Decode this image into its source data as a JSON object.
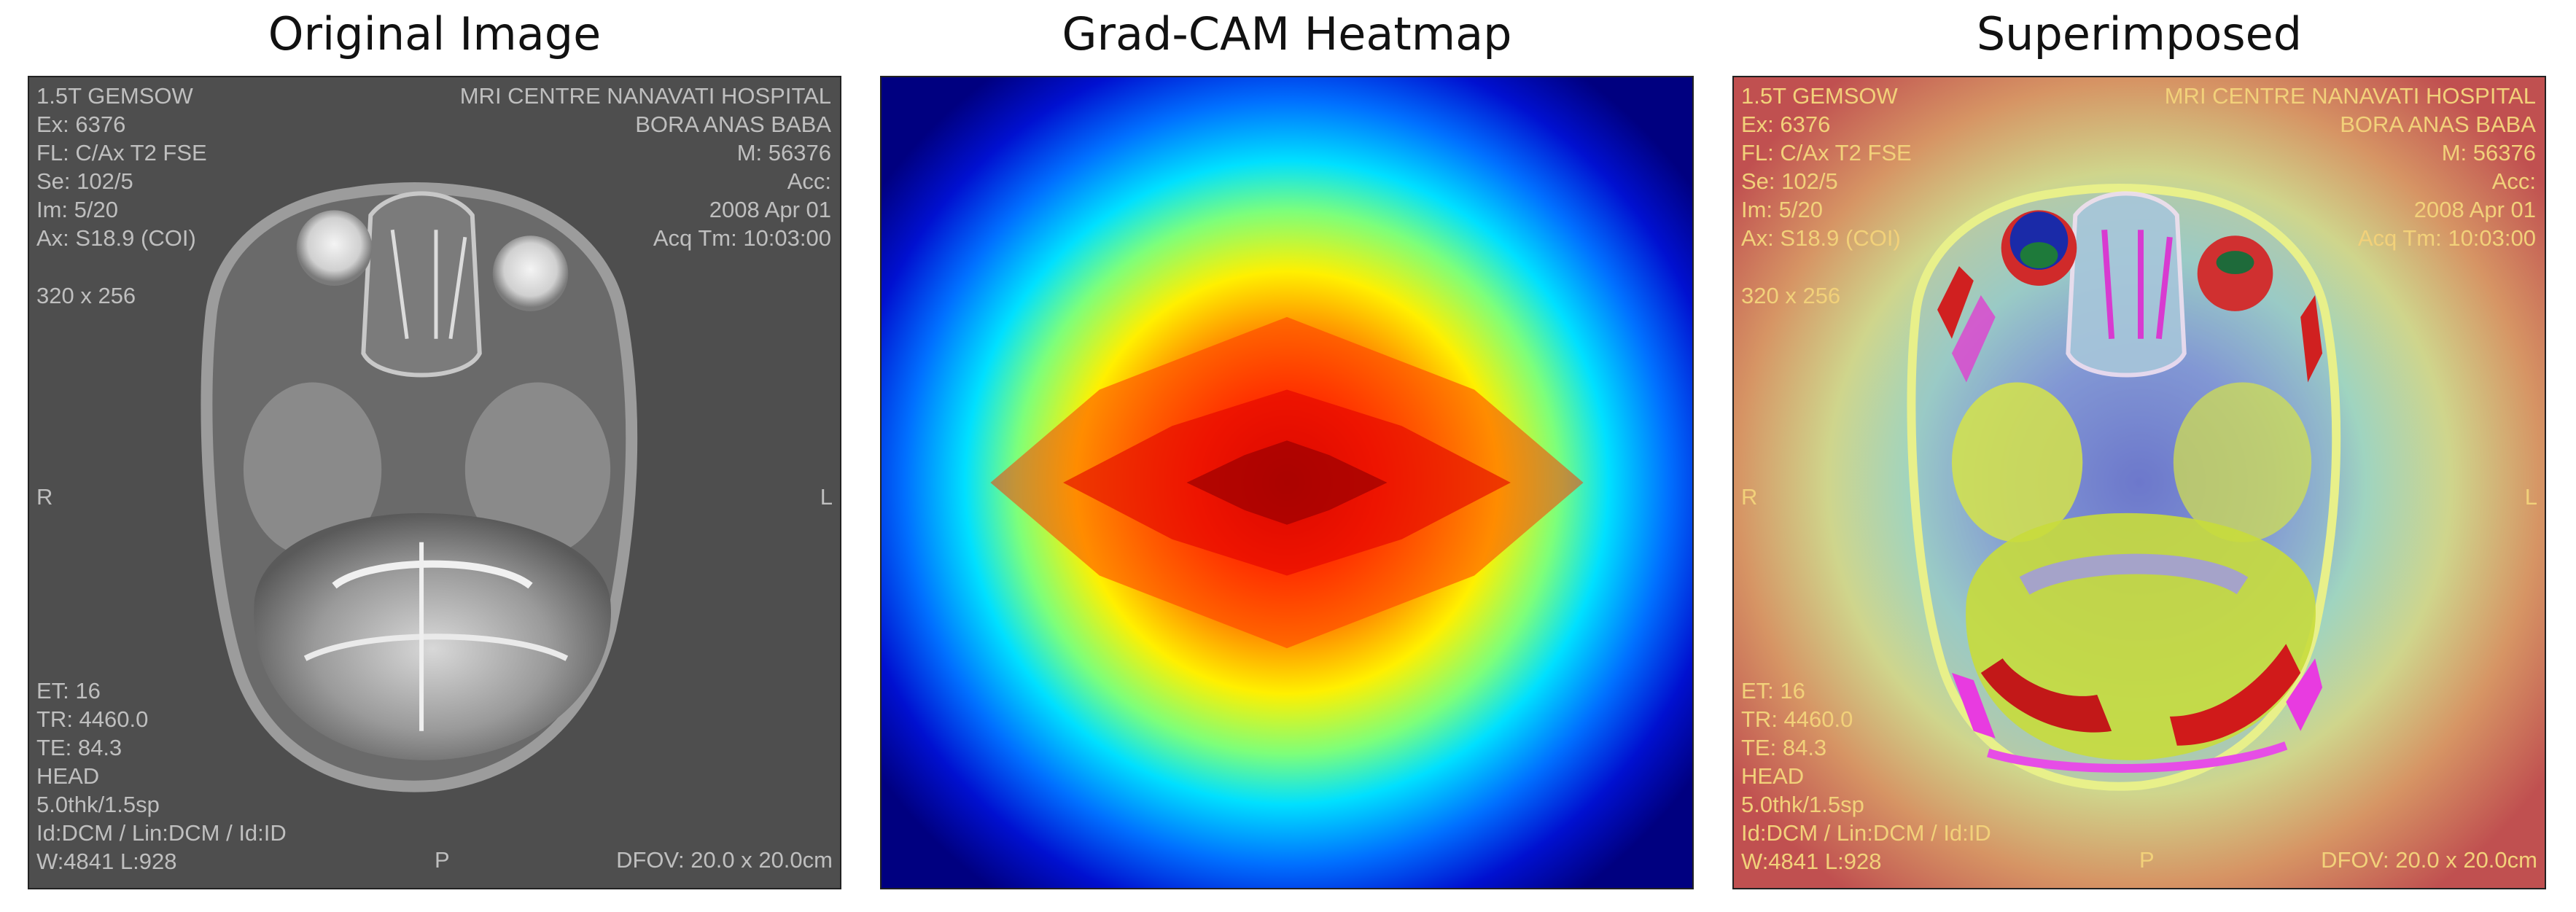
{
  "titles": {
    "original": "Original Image",
    "heatmap": "Grad-CAM Heatmap",
    "superimposed": "Superimposed"
  },
  "dicom": {
    "top_left": [
      "1.5T GEMSOW",
      "Ex: 6376",
      "FL: C/Ax T2 FSE",
      "Se: 102/5",
      "Im: 5/20",
      "Ax: S18.9 (COI)"
    ],
    "matrix": "320 x 256",
    "top_right": [
      "MRI CENTRE NANAVATI HOSPITAL",
      "BORA ANAS BABA",
      "M: 56376",
      "Acc:",
      "2008 Apr 01",
      "Acq Tm: 10:03:00"
    ],
    "bottom_left": [
      "ET: 16",
      "TR: 4460.0",
      "TE: 84.3",
      "HEAD",
      "5.0thk/1.5sp",
      "Id:DCM / Lin:DCM / Id:ID",
      "W:4841  L:928"
    ],
    "orient_left": "R",
    "orient_right": "L",
    "orient_bottom": "P",
    "dfov": "DFOV: 20.0 x 20.0cm"
  },
  "colors": {
    "overlay_gray": "#bfbfbf",
    "overlay_warm": "#f2d17a",
    "heat_peak": "#7a0000",
    "heat_low": "#00008f"
  }
}
